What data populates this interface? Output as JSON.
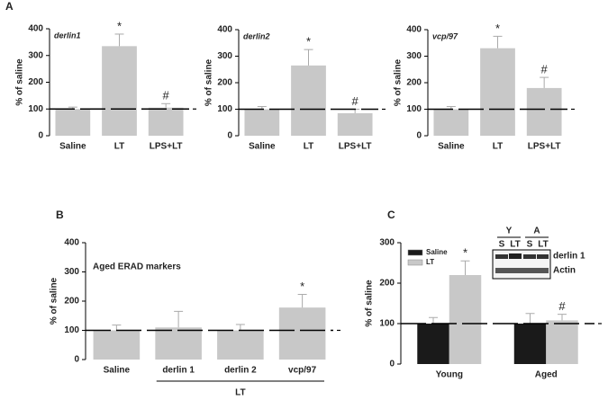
{
  "panels": [
    "A",
    "B",
    "C"
  ],
  "inset": {
    "groups": [
      "Y",
      "A"
    ],
    "lanes": [
      "S",
      "LT",
      "S",
      "LT"
    ],
    "rows": [
      "derlin 1",
      "Actin"
    ]
  },
  "chart_data": [
    {
      "type": "bar",
      "title": "derlin1",
      "ylabel": "% of saline",
      "categories": [
        "Saline",
        "LT",
        "LPS+LT"
      ],
      "values": [
        100,
        335,
        105
      ],
      "errors": [
        7,
        45,
        15
      ],
      "markers": [
        null,
        "*",
        "#"
      ],
      "color": "#c8c8c8",
      "ylim": [
        0,
        400
      ],
      "yticks": [
        0,
        100,
        200,
        300,
        400
      ],
      "refline": 100
    },
    {
      "type": "bar",
      "title": "derlin2",
      "ylabel": "% of saline",
      "categories": [
        "Saline",
        "LT",
        "LPS+LT"
      ],
      "values": [
        100,
        265,
        85
      ],
      "errors": [
        10,
        60,
        15
      ],
      "markers": [
        null,
        "*",
        "#"
      ],
      "color": "#c8c8c8",
      "ylim": [
        0,
        400
      ],
      "yticks": [
        0,
        100,
        200,
        300,
        400
      ],
      "refline": 100
    },
    {
      "type": "bar",
      "title": "vcp/97",
      "ylabel": "% of saline",
      "categories": [
        "Saline",
        "LT",
        "LPS+LT"
      ],
      "values": [
        100,
        330,
        180
      ],
      "errors": [
        10,
        45,
        40
      ],
      "markers": [
        null,
        "*",
        "#"
      ],
      "color": "#c8c8c8",
      "ylim": [
        0,
        400
      ],
      "yticks": [
        0,
        100,
        200,
        300,
        400
      ],
      "refline": 100
    },
    {
      "type": "bar",
      "title": "Aged ERAD markers",
      "ylabel": "% of saline",
      "categories": [
        "Saline",
        "derlin 1",
        "derlin 2",
        "vcp/97"
      ],
      "values": [
        100,
        110,
        100,
        178
      ],
      "errors": [
        18,
        55,
        20,
        45
      ],
      "markers": [
        null,
        null,
        null,
        "*"
      ],
      "group_label": "LT",
      "color": "#c8c8c8",
      "ylim": [
        0,
        400
      ],
      "yticks": [
        0,
        100,
        200,
        300,
        400
      ],
      "refline": 100
    },
    {
      "type": "grouped_bar",
      "ylabel": "% of saline",
      "categories": [
        "Young",
        "Aged"
      ],
      "series": [
        {
          "name": "Saline",
          "color": "#1a1a1a",
          "values": [
            100,
            100
          ],
          "errors": [
            15,
            25
          ],
          "markers": [
            null,
            null
          ]
        },
        {
          "name": "LT",
          "color": "#c8c8c8",
          "values": [
            220,
            108
          ],
          "errors": [
            35,
            15
          ],
          "markers": [
            "*",
            "#"
          ]
        }
      ],
      "legend": "upper left",
      "ylim": [
        0,
        300
      ],
      "yticks": [
        0,
        100,
        200,
        300
      ],
      "refline": 100
    }
  ]
}
